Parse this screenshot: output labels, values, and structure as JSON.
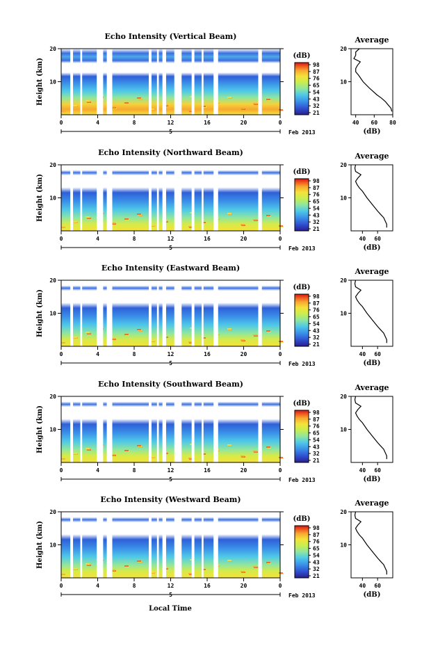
{
  "chart_data": [
    {
      "type": "heatmap",
      "title": "Echo Intensity (Vertical Beam)",
      "ylabel": "Height (km)",
      "x_ticks": [
        "0",
        "4",
        "8",
        "12",
        "16",
        "20",
        "0"
      ],
      "y_ticks": [
        "20",
        "10"
      ],
      "date_marker": "5",
      "date_label": "Feb 2013",
      "colorbar": {
        "title": "(dB)",
        "ticks": [
          "98",
          "87",
          "76",
          "65",
          "54",
          "43",
          "32",
          "21"
        ]
      },
      "profile": {
        "title": "Average",
        "xlabel": "(dB)",
        "x_ticks": [
          "40",
          "60",
          "80"
        ],
        "xlim": [
          35,
          80
        ],
        "y_ticks": [
          "20",
          "10"
        ],
        "height_km": [
          1,
          2,
          3,
          4,
          5,
          6,
          8,
          10,
          12,
          13,
          14,
          15,
          16,
          17,
          18,
          19,
          20
        ],
        "values": [
          79,
          78,
          75,
          72,
          68,
          63,
          55,
          48,
          43,
          40,
          40,
          42,
          45,
          38,
          40,
          40,
          44
        ]
      }
    },
    {
      "type": "heatmap",
      "title": "Echo Intensity (Northward Beam)",
      "ylabel": "Height (km)",
      "x_ticks": [
        "0",
        "4",
        "8",
        "12",
        "16",
        "20",
        "0"
      ],
      "y_ticks": [
        "20",
        "10"
      ],
      "date_marker": "5",
      "date_label": "Feb 2013",
      "colorbar": {
        "title": "(dB)",
        "ticks": [
          "98",
          "87",
          "76",
          "65",
          "54",
          "43",
          "32",
          "21"
        ]
      },
      "profile": {
        "title": "Average",
        "xlabel": "(dB)",
        "x_ticks": [
          "40",
          "60"
        ],
        "xlim": [
          25,
          80
        ],
        "y_ticks": [
          "20",
          "10"
        ],
        "height_km": [
          1,
          2,
          3,
          4,
          5,
          6,
          8,
          10,
          12,
          13,
          14,
          15,
          16,
          17,
          18,
          19,
          20
        ],
        "values": [
          72,
          72,
          70,
          68,
          64,
          60,
          53,
          46,
          40,
          36,
          33,
          31,
          34,
          38,
          31,
          30,
          31
        ]
      }
    },
    {
      "type": "heatmap",
      "title": "Echo Intensity (Eastward Beam)",
      "ylabel": "Height (km)",
      "x_ticks": [
        "0",
        "4",
        "8",
        "12",
        "16",
        "20",
        "0"
      ],
      "y_ticks": [
        "20",
        "10"
      ],
      "date_marker": "5",
      "date_label": "Feb 2013",
      "colorbar": {
        "title": "(dB)",
        "ticks": [
          "98",
          "87",
          "76",
          "65",
          "54",
          "43",
          "32",
          "21"
        ]
      },
      "profile": {
        "title": "Average",
        "xlabel": "(dB)",
        "x_ticks": [
          "40",
          "60"
        ],
        "xlim": [
          25,
          80
        ],
        "y_ticks": [
          "20",
          "10"
        ],
        "height_km": [
          1,
          2,
          3,
          4,
          5,
          6,
          8,
          10,
          12,
          13,
          14,
          15,
          16,
          17,
          18,
          19,
          20
        ],
        "values": [
          72,
          72,
          70,
          68,
          64,
          60,
          53,
          46,
          40,
          36,
          33,
          31,
          34,
          38,
          31,
          30,
          31
        ]
      }
    },
    {
      "type": "heatmap",
      "title": "Echo Intensity (Southward Beam)",
      "ylabel": "Height (km)",
      "x_ticks": [
        "0",
        "4",
        "8",
        "12",
        "16",
        "20",
        "0"
      ],
      "y_ticks": [
        "20",
        "10"
      ],
      "date_marker": "5",
      "date_label": "Feb 2013",
      "colorbar": {
        "title": "(dB)",
        "ticks": [
          "98",
          "87",
          "76",
          "65",
          "54",
          "43",
          "32",
          "21"
        ]
      },
      "profile": {
        "title": "Average",
        "xlabel": "(dB)",
        "x_ticks": [
          "40",
          "60"
        ],
        "xlim": [
          25,
          80
        ],
        "y_ticks": [
          "20",
          "10"
        ],
        "height_km": [
          1,
          2,
          3,
          4,
          5,
          6,
          8,
          10,
          12,
          13,
          14,
          15,
          16,
          17,
          18,
          19,
          20
        ],
        "values": [
          72,
          72,
          70,
          68,
          64,
          60,
          53,
          46,
          40,
          36,
          33,
          31,
          34,
          38,
          31,
          30,
          31
        ]
      }
    },
    {
      "type": "heatmap",
      "title": "Echo Intensity (Westward Beam)",
      "ylabel": "Height (km)",
      "x_ticks": [
        "0",
        "4",
        "8",
        "12",
        "16",
        "20",
        "0"
      ],
      "y_ticks": [
        "20",
        "10"
      ],
      "date_marker": "5",
      "date_label": "Feb 2013",
      "colorbar": {
        "title": "(dB)",
        "ticks": [
          "98",
          "87",
          "76",
          "65",
          "54",
          "43",
          "32",
          "21"
        ]
      },
      "profile": {
        "title": "Average",
        "xlabel": "(dB)",
        "x_ticks": [
          "40",
          "60"
        ],
        "xlim": [
          25,
          80
        ],
        "y_ticks": [
          "20",
          "10"
        ],
        "height_km": [
          1,
          2,
          3,
          4,
          5,
          6,
          8,
          10,
          12,
          13,
          14,
          15,
          16,
          17,
          18,
          19,
          20
        ],
        "values": [
          72,
          72,
          70,
          68,
          64,
          60,
          53,
          46,
          40,
          36,
          33,
          31,
          34,
          38,
          31,
          30,
          31
        ]
      }
    }
  ],
  "xlabel": "Local Time",
  "colors": {
    "scale": [
      "#2a1e8c",
      "#2f4fd0",
      "#3a8fe8",
      "#4fc8e8",
      "#8ee6a0",
      "#c8ee50",
      "#f5e23a",
      "#f7a830",
      "#f05a1e",
      "#d21414"
    ]
  }
}
